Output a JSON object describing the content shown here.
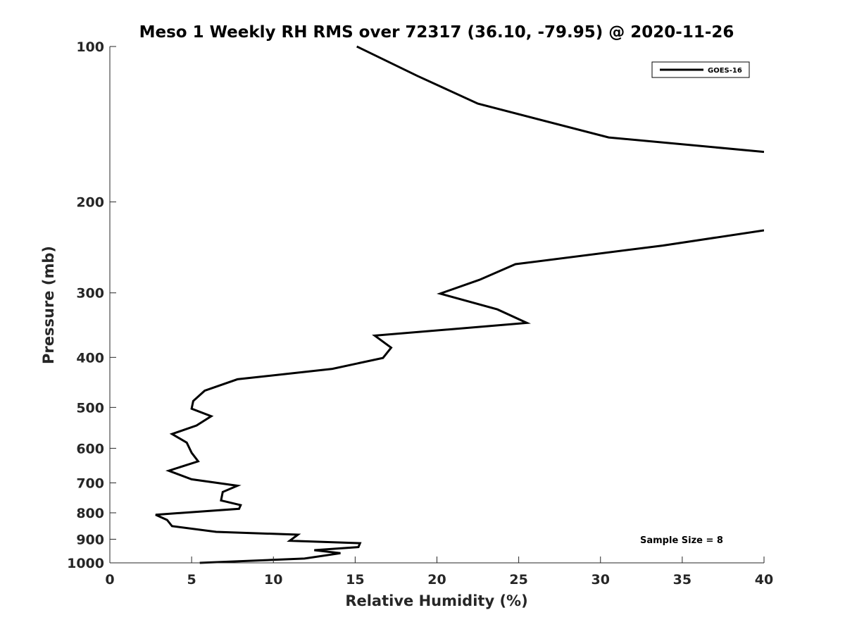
{
  "chart_data": {
    "type": "line",
    "title": "Meso 1 Weekly RH RMS over 72317 (36.10, -79.95) @ 2020-11-26",
    "xlabel": "Relative Humidity (%)",
    "ylabel": "Pressure (mb)",
    "xlim": [
      0,
      40
    ],
    "ylim": [
      100,
      1000
    ],
    "y_scale": "log",
    "y_reversed": true,
    "x_ticks": [
      0,
      5,
      10,
      15,
      20,
      25,
      30,
      35,
      40
    ],
    "y_ticks": [
      100,
      200,
      300,
      400,
      500,
      600,
      700,
      800,
      900,
      1000
    ],
    "grid": false,
    "legend_position": "top-right",
    "annotation": "Sample Size = 8",
    "line_color": "#000000",
    "series": [
      {
        "name": "GOES-16",
        "x": [
          15.1,
          18.8,
          22.5,
          30.5,
          40.0,
          null,
          40.0,
          33.8,
          24.8,
          22.6,
          20.2,
          23.7,
          25.5,
          16.2,
          17.2,
          16.7,
          13.6,
          7.8,
          5.8,
          5.1,
          5.0,
          6.2,
          5.3,
          3.8,
          4.7,
          5.0,
          5.4,
          3.6,
          5.0,
          7.8,
          6.9,
          6.8,
          8.0,
          7.9,
          2.8,
          3.5,
          3.8,
          6.5,
          11.5,
          11.0,
          15.3,
          15.2,
          12.5,
          14.1,
          11.9,
          5.5
        ],
        "y": [
          100,
          114,
          129,
          150,
          160,
          null,
          227,
          243,
          264,
          283,
          301,
          323,
          343,
          363,
          383,
          401,
          421,
          441,
          464,
          486,
          503,
          520,
          542,
          563,
          585,
          612,
          636,
          663,
          689,
          709,
          729,
          757,
          773,
          786,
          807,
          826,
          849,
          871,
          882,
          906,
          916,
          932,
          945,
          958,
          981,
          1000
        ]
      }
    ]
  }
}
